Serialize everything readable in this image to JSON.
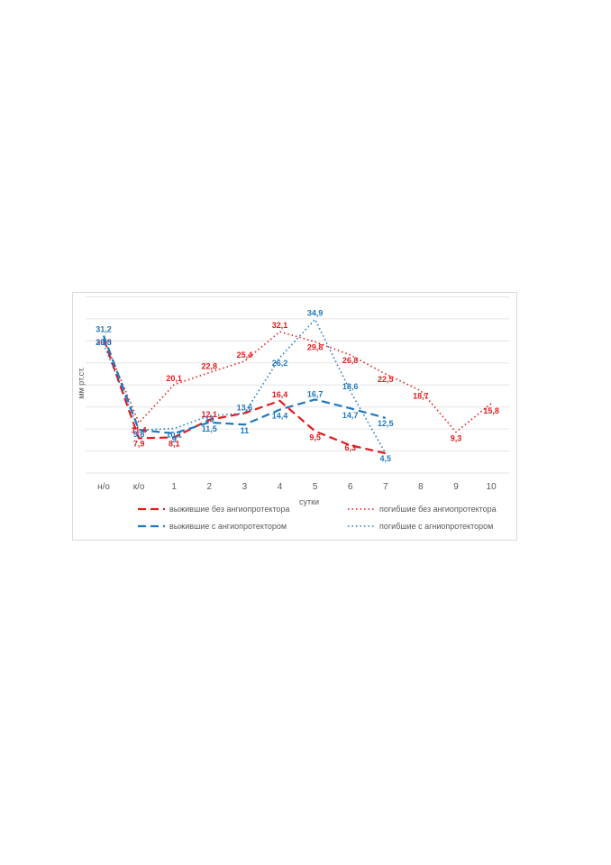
{
  "chart_data": {
    "type": "line",
    "categories": [
      "н/о",
      "к/о",
      "1",
      "2",
      "3",
      "4",
      "5",
      "6",
      "7",
      "8",
      "9",
      "10"
    ],
    "xlabel": "сутки",
    "ylabel": "мм рт.ст.",
    "ylim": [
      0,
      40
    ],
    "grid": "horizontal",
    "legend_position": "bottom",
    "series": [
      {
        "name": "выжившие без ангиопротектора",
        "color": "#e41a1c",
        "dash": "dashed",
        "values": [
          30.5,
          7.9,
          8.1,
          12.1,
          13.6,
          16.4,
          9.5,
          6.3,
          4.5,
          null,
          null,
          null
        ]
      },
      {
        "name": "погибшие без ангиопротектора",
        "color": "#e41a1c",
        "dash": "dotted",
        "values": [
          30.5,
          11.4,
          20.1,
          22.8,
          25.4,
          32.1,
          29.8,
          26.8,
          22.5,
          18.7,
          9.3,
          15.8
        ]
      },
      {
        "name": "выжившие с ангиопротектором",
        "color": "#1f78c1",
        "dash": "dashed",
        "values": [
          31.2,
          9.8,
          9.0,
          11.5,
          11.0,
          14.4,
          16.7,
          14.7,
          12.5,
          null,
          null,
          null
        ]
      },
      {
        "name": "погибшие с агниопротектором",
        "color": "#1f78c1",
        "dash": "dotted",
        "values": [
          29.3,
          9.8,
          10.1,
          13.0,
          13.6,
          26.2,
          34.9,
          18.6,
          4.5,
          null,
          null,
          null
        ]
      }
    ],
    "point_labels": [
      [
        {
          "i": 0,
          "t": "30,5"
        },
        {
          "i": 1,
          "t": "7,9"
        },
        {
          "i": 2,
          "t": "8,1"
        },
        {
          "i": 3,
          "t": "12,1"
        },
        {
          "i": 5,
          "t": "16,4"
        },
        {
          "i": 6,
          "t": "9,5"
        },
        {
          "i": 7,
          "t": "6,3"
        }
      ],
      [
        {
          "i": 1,
          "t": "11,4"
        },
        {
          "i": 2,
          "t": "20,1"
        },
        {
          "i": 3,
          "t": "22,8"
        },
        {
          "i": 4,
          "t": "25,4"
        },
        {
          "i": 5,
          "t": "32,1"
        },
        {
          "i": 6,
          "t": "29,8"
        },
        {
          "i": 7,
          "t": "26,8"
        },
        {
          "i": 8,
          "t": "22,5"
        },
        {
          "i": 9,
          "t": "18,7"
        },
        {
          "i": 10,
          "t": "9,3"
        },
        {
          "i": 11,
          "t": "15,8"
        }
      ],
      [
        {
          "i": 0,
          "t": "31,2"
        },
        {
          "i": 1,
          "t": "9,8"
        },
        {
          "i": 2,
          "t": "9"
        },
        {
          "i": 3,
          "t": "11,5"
        },
        {
          "i": 4,
          "t": "11"
        },
        {
          "i": 5,
          "t": "14,4"
        },
        {
          "i": 6,
          "t": "16,7"
        },
        {
          "i": 7,
          "t": "14,7"
        },
        {
          "i": 8,
          "t": "12,5"
        }
      ],
      [
        {
          "i": 0,
          "t": "29,3"
        },
        {
          "i": 2,
          "t": "10,1"
        },
        {
          "i": 3,
          "t": "13"
        },
        {
          "i": 4,
          "t": "13,6"
        },
        {
          "i": 5,
          "t": "26,2"
        },
        {
          "i": 6,
          "t": "34,9"
        },
        {
          "i": 7,
          "t": "18,6"
        },
        {
          "i": 8,
          "t": "4,5"
        }
      ]
    ]
  }
}
